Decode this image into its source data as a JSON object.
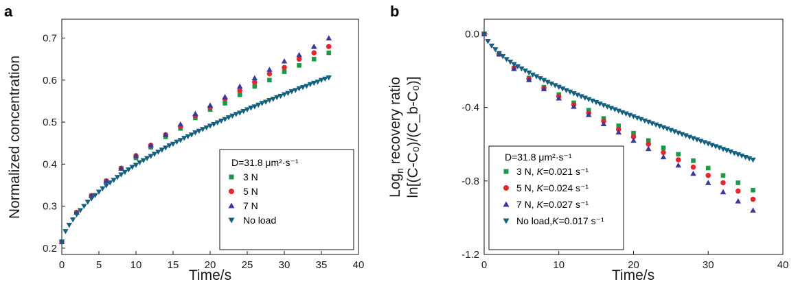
{
  "chart_data": [
    {
      "type": "scatter",
      "panel_label": "a",
      "xlabel": "Time/s",
      "ylabel": "Normalized  concentration",
      "xlim": [
        0,
        40
      ],
      "ylim": [
        0.185,
        0.745
      ],
      "xticks": [
        "0",
        "5",
        "10",
        "15",
        "20",
        "25",
        "30",
        "35",
        "40"
      ],
      "yticks": [
        "0.2",
        "0.3",
        "0.4",
        "0.5",
        "0.6",
        "0.7"
      ],
      "legend_title": "D=31.8 μm²·s⁻¹",
      "legend_position": "lower-right",
      "series": [
        {
          "name": "3 N",
          "marker": "square",
          "color": "#1a9a48",
          "x": [
            0,
            2,
            4,
            6,
            8,
            10,
            12,
            14,
            16,
            18,
            20,
            22,
            24,
            26,
            28,
            30,
            32,
            34,
            36
          ],
          "y": [
            0.215,
            0.285,
            0.325,
            0.36,
            0.39,
            0.415,
            0.44,
            0.465,
            0.485,
            0.51,
            0.53,
            0.545,
            0.565,
            0.585,
            0.6,
            0.62,
            0.635,
            0.65,
            0.665
          ]
        },
        {
          "name": "5 N",
          "marker": "circle",
          "color": "#e5262c",
          "x": [
            0,
            2,
            4,
            6,
            8,
            10,
            12,
            14,
            16,
            18,
            20,
            22,
            24,
            26,
            28,
            30,
            32,
            34,
            36
          ],
          "y": [
            0.215,
            0.285,
            0.325,
            0.36,
            0.39,
            0.42,
            0.445,
            0.47,
            0.49,
            0.515,
            0.535,
            0.555,
            0.575,
            0.595,
            0.615,
            0.63,
            0.65,
            0.665,
            0.68
          ]
        },
        {
          "name": "7 N",
          "marker": "triangle-up",
          "color": "#3a3a9a",
          "x": [
            0,
            2,
            4,
            6,
            8,
            10,
            12,
            14,
            16,
            18,
            20,
            22,
            24,
            26,
            28,
            30,
            32,
            34,
            36
          ],
          "y": [
            0.215,
            0.285,
            0.325,
            0.36,
            0.39,
            0.42,
            0.445,
            0.47,
            0.495,
            0.52,
            0.54,
            0.56,
            0.585,
            0.605,
            0.625,
            0.645,
            0.66,
            0.68,
            0.7
          ]
        },
        {
          "name": "No load",
          "marker": "triangle-down",
          "color": "#14607e",
          "x": [
            0,
            0.5,
            1,
            1.5,
            2,
            2.5,
            3,
            3.5,
            4,
            4.5,
            5,
            5.5,
            6,
            6.5,
            7,
            7.5,
            8,
            8.5,
            9,
            9.5,
            10,
            10.5,
            11,
            11.5,
            12,
            12.5,
            13,
            13.5,
            14,
            14.5,
            15,
            15.5,
            16,
            16.5,
            17,
            17.5,
            18,
            18.5,
            19,
            19.5,
            20,
            20.5,
            21,
            21.5,
            22,
            22.5,
            23,
            23.5,
            24,
            24.5,
            25,
            25.5,
            26,
            26.5,
            27,
            27.5,
            28,
            28.5,
            29,
            29.5,
            30,
            30.5,
            31,
            31.5,
            32,
            32.5,
            33,
            33.5,
            34,
            34.5,
            35,
            35.5,
            36
          ],
          "y": [
            0.215,
            0.24,
            0.255,
            0.268,
            0.28,
            0.29,
            0.3,
            0.31,
            0.318,
            0.326,
            0.334,
            0.342,
            0.349,
            0.356,
            0.362,
            0.369,
            0.375,
            0.381,
            0.387,
            0.393,
            0.398,
            0.404,
            0.409,
            0.414,
            0.419,
            0.424,
            0.429,
            0.434,
            0.439,
            0.444,
            0.448,
            0.453,
            0.457,
            0.462,
            0.466,
            0.47,
            0.475,
            0.479,
            0.483,
            0.487,
            0.491,
            0.495,
            0.499,
            0.503,
            0.507,
            0.511,
            0.515,
            0.519,
            0.522,
            0.526,
            0.53,
            0.534,
            0.537,
            0.541,
            0.545,
            0.548,
            0.552,
            0.555,
            0.559,
            0.562,
            0.566,
            0.569,
            0.573,
            0.576,
            0.58,
            0.583,
            0.586,
            0.59,
            0.593,
            0.596,
            0.6,
            0.603,
            0.606
          ]
        }
      ]
    },
    {
      "type": "scatter",
      "panel_label": "b",
      "xlabel": "Time/s",
      "ylabel_line1": "Log",
      "ylabel_line1_sub": "n",
      "ylabel_line1_rest": " recovery ratio",
      "ylabel_line2": "ln[(C-C₀)/(C_b-C₀)]",
      "xlim": [
        0,
        40
      ],
      "ylim": [
        -1.2,
        0.08
      ],
      "xticks": [
        "0",
        "10",
        "20",
        "30",
        "40"
      ],
      "yticks": [
        "0.0",
        "-0.4",
        "-0.8",
        "-1.2"
      ],
      "legend_title": "D=31.8 μm²·s⁻¹",
      "legend_position": "lower-left",
      "series": [
        {
          "name": "3 N, K=0.021 s⁻¹",
          "name_prefix": "3 N, ",
          "k_text": "=0.021 s⁻¹",
          "marker": "square",
          "color": "#1a9a48",
          "x": [
            0,
            2,
            4,
            6,
            8,
            10,
            12,
            14,
            16,
            18,
            20,
            22,
            24,
            26,
            28,
            30,
            32,
            34,
            36
          ],
          "y": [
            0,
            -0.11,
            -0.185,
            -0.24,
            -0.29,
            -0.33,
            -0.375,
            -0.415,
            -0.46,
            -0.5,
            -0.54,
            -0.58,
            -0.62,
            -0.655,
            -0.69,
            -0.73,
            -0.77,
            -0.81,
            -0.85
          ]
        },
        {
          "name": "5 N, K=0.024 s⁻¹",
          "name_prefix": "5 N, ",
          "k_text": "=0.024 s⁻¹",
          "marker": "circle",
          "color": "#e5262c",
          "x": [
            0,
            2,
            4,
            6,
            8,
            10,
            12,
            14,
            16,
            18,
            20,
            22,
            24,
            26,
            28,
            30,
            32,
            34,
            36
          ],
          "y": [
            0,
            -0.11,
            -0.185,
            -0.245,
            -0.295,
            -0.34,
            -0.385,
            -0.43,
            -0.475,
            -0.52,
            -0.56,
            -0.6,
            -0.645,
            -0.685,
            -0.725,
            -0.77,
            -0.81,
            -0.855,
            -0.9
          ]
        },
        {
          "name": "7 N, K=0.027 s⁻¹",
          "name_prefix": "7 N, ",
          "k_text": "=0.027 s⁻¹",
          "marker": "triangle-up",
          "color": "#3a3a9a",
          "x": [
            0,
            2,
            4,
            6,
            8,
            10,
            12,
            14,
            16,
            18,
            20,
            22,
            24,
            26,
            28,
            30,
            32,
            34,
            36
          ],
          "y": [
            0,
            -0.11,
            -0.19,
            -0.25,
            -0.3,
            -0.35,
            -0.395,
            -0.44,
            -0.49,
            -0.535,
            -0.58,
            -0.625,
            -0.67,
            -0.715,
            -0.76,
            -0.81,
            -0.86,
            -0.91,
            -0.96
          ]
        },
        {
          "name": "No load, K=0.017 s⁻¹",
          "name_prefix": "No load,",
          "k_text": "=0.017 s⁻¹",
          "marker": "triangle-down",
          "color": "#14607e",
          "x": [
            0,
            0.5,
            1,
            1.5,
            2,
            2.5,
            3,
            3.5,
            4,
            4.5,
            5,
            5.5,
            6,
            6.5,
            7,
            7.5,
            8,
            8.5,
            9,
            9.5,
            10,
            10.5,
            11,
            11.5,
            12,
            12.5,
            13,
            13.5,
            14,
            14.5,
            15,
            15.5,
            16,
            16.5,
            17,
            17.5,
            18,
            18.5,
            19,
            19.5,
            20,
            20.5,
            21,
            21.5,
            22,
            22.5,
            23,
            23.5,
            24,
            24.5,
            25,
            25.5,
            26,
            26.5,
            27,
            27.5,
            28,
            28.5,
            29,
            29.5,
            30,
            30.5,
            31,
            31.5,
            32,
            32.5,
            33,
            33.5,
            34,
            34.5,
            35,
            35.5,
            36
          ],
          "y": [
            0,
            -0.04,
            -0.065,
            -0.085,
            -0.105,
            -0.122,
            -0.138,
            -0.152,
            -0.165,
            -0.177,
            -0.189,
            -0.2,
            -0.211,
            -0.222,
            -0.232,
            -0.242,
            -0.252,
            -0.262,
            -0.271,
            -0.28,
            -0.289,
            -0.298,
            -0.307,
            -0.315,
            -0.324,
            -0.332,
            -0.34,
            -0.348,
            -0.356,
            -0.364,
            -0.372,
            -0.38,
            -0.388,
            -0.396,
            -0.404,
            -0.411,
            -0.419,
            -0.427,
            -0.434,
            -0.442,
            -0.449,
            -0.457,
            -0.464,
            -0.472,
            -0.479,
            -0.487,
            -0.494,
            -0.502,
            -0.509,
            -0.516,
            -0.524,
            -0.531,
            -0.539,
            -0.546,
            -0.553,
            -0.561,
            -0.568,
            -0.575,
            -0.583,
            -0.59,
            -0.597,
            -0.605,
            -0.612,
            -0.619,
            -0.627,
            -0.634,
            -0.641,
            -0.649,
            -0.656,
            -0.663,
            -0.671,
            -0.678,
            -0.685
          ]
        }
      ]
    }
  ]
}
